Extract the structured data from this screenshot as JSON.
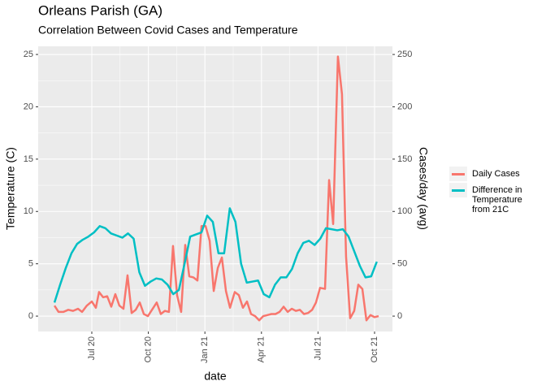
{
  "chart_data": {
    "type": "line",
    "title": "Orleans Parish (GA)",
    "subtitle": "Correlation Between Covid Cases and Temperature",
    "x_label": "date",
    "y_label": "Temperature (C)",
    "y2_label": "Cases/day (avg)",
    "xlim": [
      2020.263,
      2021.829
    ],
    "xticks": [
      {
        "value": 2020.5,
        "label": "Jul 20"
      },
      {
        "value": 2020.75,
        "label": "Oct 20"
      },
      {
        "value": 2021.0,
        "label": "Jan 21"
      },
      {
        "value": 2021.25,
        "label": "Apr 21"
      },
      {
        "value": 2021.5,
        "label": "Jul 21"
      },
      {
        "value": 2021.75,
        "label": "Oct 21"
      }
    ],
    "ylim": [
      -1.47,
      25.78
    ],
    "yticks": [
      0,
      5,
      10,
      15,
      20,
      25
    ],
    "y2lim": [
      -14.7,
      257.8
    ],
    "y2ticks": [
      0,
      50,
      100,
      150,
      200,
      250
    ],
    "grid": true,
    "legend": "right",
    "series": [
      {
        "name": "Daily Cases",
        "color": "#F8766D",
        "axis": "y2",
        "x": [
          2020.335,
          2020.353,
          2020.374,
          2020.396,
          2020.417,
          2020.439,
          2020.457,
          2020.478,
          2020.5,
          2020.518,
          2020.532,
          2020.55,
          2020.568,
          2020.586,
          2020.604,
          2020.622,
          2020.64,
          2020.658,
          2020.676,
          2020.694,
          2020.712,
          2020.73,
          2020.748,
          2020.766,
          2020.787,
          2020.805,
          2020.823,
          2020.841,
          2020.859,
          2020.877,
          2020.895,
          2020.913,
          2020.931,
          2020.949,
          2020.967,
          2020.985,
          2021.003,
          2021.021,
          2021.039,
          2021.057,
          2021.075,
          2021.093,
          2021.111,
          2021.132,
          2021.15,
          2021.168,
          2021.186,
          2021.204,
          2021.222,
          2021.24,
          2021.258,
          2021.276,
          2021.294,
          2021.312,
          2021.33,
          2021.348,
          2021.366,
          2021.384,
          2021.402,
          2021.42,
          2021.438,
          2021.456,
          2021.474,
          2021.491,
          2021.509,
          2021.531,
          2021.549,
          2021.567,
          2021.588,
          2021.606,
          2021.624,
          2021.642,
          2021.66,
          2021.678,
          2021.696,
          2021.714,
          2021.732,
          2021.75,
          2021.768
        ],
        "values": [
          10,
          4,
          4,
          6,
          5,
          7,
          4,
          10,
          14,
          8,
          23,
          18,
          19,
          9,
          21,
          10,
          7,
          39,
          3,
          6,
          13,
          2,
          0,
          6,
          13,
          2,
          5,
          4,
          67,
          20,
          4,
          68,
          38,
          37,
          34,
          86,
          86,
          72,
          24,
          46,
          56,
          24,
          8,
          23,
          20,
          8,
          14,
          2,
          0,
          -4,
          0,
          1,
          2,
          2,
          4,
          9,
          4,
          7,
          5,
          6,
          2,
          3,
          6,
          13,
          27,
          26,
          130,
          88,
          248,
          212,
          57,
          -2,
          5,
          30,
          26,
          -4,
          1,
          -1,
          0
        ]
      },
      {
        "name": "Difference in Temperature from 21C",
        "color": "#00BFC4",
        "axis": "y",
        "x": [
          2020.335,
          2020.36,
          2020.385,
          2020.41,
          2020.435,
          2020.46,
          2020.485,
          2020.51,
          2020.535,
          2020.56,
          2020.585,
          2020.61,
          2020.635,
          2020.66,
          2020.685,
          2020.71,
          2020.735,
          2020.76,
          2020.785,
          2020.81,
          2020.835,
          2020.86,
          2020.885,
          2020.91,
          2020.935,
          2020.96,
          2020.985,
          2021.01,
          2021.035,
          2021.06,
          2021.085,
          2021.11,
          2021.135,
          2021.16,
          2021.185,
          2021.21,
          2021.235,
          2021.26,
          2021.285,
          2021.31,
          2021.335,
          2021.36,
          2021.385,
          2021.41,
          2021.435,
          2021.46,
          2021.485,
          2021.51,
          2021.535,
          2021.56,
          2021.585,
          2021.61,
          2021.635,
          2021.66,
          2021.685,
          2021.71,
          2021.735,
          2021.76
        ],
        "values": [
          1.3,
          3.0,
          4.6,
          6.0,
          6.9,
          7.3,
          7.6,
          8.0,
          8.6,
          8.4,
          7.9,
          7.7,
          7.5,
          7.9,
          7.4,
          4.2,
          2.9,
          3.3,
          3.6,
          3.5,
          3.0,
          2.1,
          2.5,
          5.0,
          7.6,
          7.8,
          8.0,
          9.6,
          9.0,
          6.0,
          6.0,
          10.3,
          9.0,
          5.0,
          3.2,
          3.3,
          3.4,
          2.1,
          1.8,
          3.0,
          3.7,
          3.7,
          4.5,
          6.0,
          7.0,
          7.2,
          6.8,
          7.4,
          8.4,
          8.3,
          8.2,
          8.3,
          7.6,
          6.2,
          4.8,
          3.7,
          3.8,
          5.2
        ]
      }
    ]
  }
}
